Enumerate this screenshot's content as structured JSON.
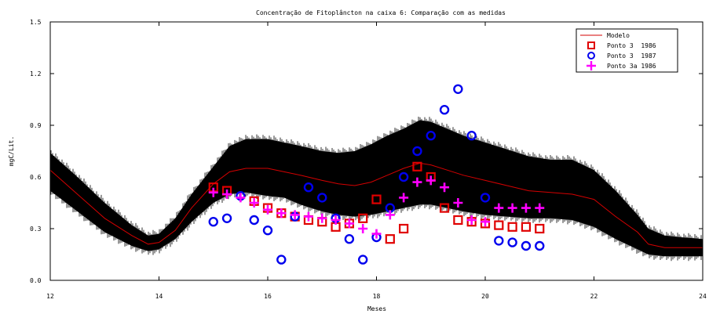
{
  "chart_data": {
    "type": "line",
    "title": "Concentração de Fitoplâncton na caixa 6: Comparação com as medidas",
    "xlabel": "Meses",
    "ylabel": "mgC/Lit.",
    "xlim": [
      12,
      24
    ],
    "ylim": [
      0,
      1.5
    ],
    "x_ticks": [
      12,
      14,
      16,
      18,
      20,
      22,
      24
    ],
    "x_tick_labels": [
      "12",
      "14",
      "16",
      "18",
      "20",
      "22",
      "24"
    ],
    "y_ticks": [
      0,
      0.3,
      0.6,
      0.9,
      1.2,
      1.5
    ],
    "y_tick_labels": [
      "0.0",
      "0.3",
      "0.6",
      "0.9",
      "1.2",
      "1.5"
    ],
    "legend_position": "top-right",
    "colors": {
      "model": "#d40000",
      "band": "#000000",
      "square": "#e00000",
      "circle": "#0000ee",
      "plus": "#ff00ff"
    },
    "band": {
      "x": [
        12.0,
        12.5,
        13.0,
        13.5,
        13.8,
        14.0,
        14.3,
        14.6,
        15.0,
        15.3,
        15.6,
        16.0,
        16.3,
        16.6,
        17.0,
        17.3,
        17.6,
        17.9,
        18.2,
        18.5,
        18.8,
        19.0,
        19.3,
        19.6,
        20.0,
        20.4,
        20.8,
        21.2,
        21.6,
        22.0,
        22.4,
        22.8,
        23.0,
        23.3,
        23.6,
        24.0
      ],
      "upper": [
        0.74,
        0.6,
        0.45,
        0.32,
        0.26,
        0.27,
        0.36,
        0.5,
        0.66,
        0.78,
        0.82,
        0.82,
        0.8,
        0.78,
        0.75,
        0.74,
        0.75,
        0.79,
        0.84,
        0.88,
        0.93,
        0.92,
        0.88,
        0.84,
        0.8,
        0.76,
        0.72,
        0.7,
        0.7,
        0.64,
        0.52,
        0.38,
        0.3,
        0.26,
        0.25,
        0.24
      ],
      "lower": [
        0.52,
        0.4,
        0.28,
        0.2,
        0.17,
        0.18,
        0.24,
        0.34,
        0.45,
        0.5,
        0.51,
        0.49,
        0.48,
        0.44,
        0.4,
        0.38,
        0.37,
        0.38,
        0.4,
        0.42,
        0.44,
        0.44,
        0.42,
        0.4,
        0.38,
        0.37,
        0.36,
        0.36,
        0.35,
        0.31,
        0.24,
        0.18,
        0.15,
        0.14,
        0.14,
        0.14
      ]
    },
    "series": [
      {
        "name": "Modelo",
        "kind": "line",
        "x": [
          12.0,
          12.5,
          13.0,
          13.5,
          13.8,
          14.0,
          14.3,
          14.6,
          15.0,
          15.3,
          15.6,
          16.0,
          16.3,
          16.6,
          17.0,
          17.3,
          17.6,
          17.9,
          18.2,
          18.5,
          18.8,
          19.0,
          19.3,
          19.6,
          20.0,
          20.4,
          20.8,
          21.2,
          21.6,
          22.0,
          22.4,
          22.8,
          23.0,
          23.3,
          23.6,
          24.0
        ],
        "y": [
          0.64,
          0.5,
          0.36,
          0.26,
          0.21,
          0.22,
          0.29,
          0.42,
          0.56,
          0.63,
          0.65,
          0.65,
          0.63,
          0.61,
          0.58,
          0.56,
          0.55,
          0.57,
          0.61,
          0.65,
          0.68,
          0.67,
          0.64,
          0.61,
          0.58,
          0.55,
          0.52,
          0.51,
          0.5,
          0.47,
          0.37,
          0.28,
          0.21,
          0.19,
          0.19,
          0.19
        ]
      },
      {
        "name": "Ponto 3  1986",
        "kind": "square",
        "x": [
          15.0,
          15.25,
          15.75,
          16.0,
          16.25,
          16.5,
          16.75,
          17.0,
          17.25,
          17.5,
          17.75,
          18.0,
          18.25,
          18.5,
          18.75,
          19.0,
          19.25,
          19.5,
          19.75,
          20.0,
          20.25,
          20.5,
          20.75,
          21.0
        ],
        "y": [
          0.54,
          0.52,
          0.46,
          0.42,
          0.39,
          0.37,
          0.35,
          0.34,
          0.31,
          0.33,
          0.36,
          0.47,
          0.24,
          0.3,
          0.66,
          0.6,
          0.42,
          0.35,
          0.34,
          0.33,
          0.32,
          0.31,
          0.31,
          0.3
        ]
      },
      {
        "name": "Ponto 3  1987",
        "kind": "circle",
        "x": [
          15.0,
          15.25,
          15.5,
          15.75,
          16.0,
          16.25,
          16.5,
          16.75,
          17.0,
          17.25,
          17.5,
          17.75,
          18.0,
          18.25,
          18.5,
          18.75,
          19.0,
          19.25,
          19.5,
          19.75,
          20.0,
          20.25,
          20.5,
          20.75,
          21.0
        ],
        "y": [
          0.34,
          0.36,
          0.49,
          0.35,
          0.29,
          0.12,
          0.37,
          0.54,
          0.48,
          0.36,
          0.24,
          0.12,
          0.25,
          0.42,
          0.6,
          0.75,
          0.84,
          0.99,
          1.11,
          0.84,
          0.48,
          0.23,
          0.22,
          0.2,
          0.2
        ]
      },
      {
        "name": "Ponto 3a 1986",
        "kind": "plus",
        "x": [
          15.0,
          15.25,
          15.5,
          15.75,
          16.0,
          16.25,
          16.5,
          16.75,
          17.0,
          17.25,
          17.5,
          17.75,
          18.0,
          18.25,
          18.5,
          18.75,
          19.0,
          19.25,
          19.5,
          19.75,
          20.0,
          20.25,
          20.5,
          20.75,
          21.0
        ],
        "y": [
          0.51,
          0.5,
          0.48,
          0.45,
          0.41,
          0.39,
          0.38,
          0.37,
          0.36,
          0.35,
          0.33,
          0.3,
          0.27,
          0.38,
          0.48,
          0.57,
          0.58,
          0.54,
          0.45,
          0.35,
          0.34,
          0.42,
          0.42,
          0.42,
          0.42
        ]
      }
    ]
  }
}
